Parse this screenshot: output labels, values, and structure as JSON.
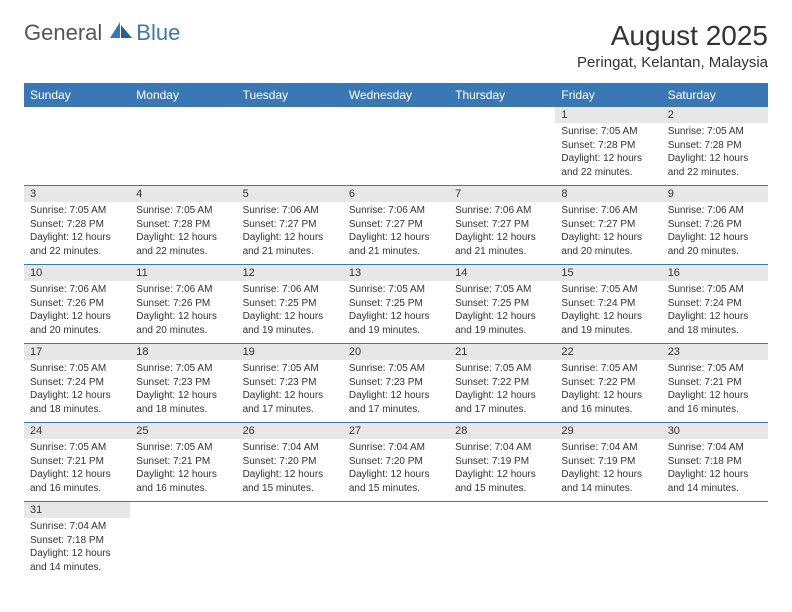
{
  "brand": {
    "general": "General",
    "blue": "Blue"
  },
  "title": "August 2025",
  "location": "Peringat, Kelantan, Malaysia",
  "colors": {
    "header_bg": "#3a78b5",
    "header_text": "#ffffff",
    "daynum_bg": "#e7e7e7",
    "border": "#3a78b5",
    "text": "#333333"
  },
  "weekdays": [
    "Sunday",
    "Monday",
    "Tuesday",
    "Wednesday",
    "Thursday",
    "Friday",
    "Saturday"
  ],
  "weeks": [
    [
      null,
      null,
      null,
      null,
      null,
      {
        "n": "1",
        "sr": "7:05 AM",
        "ss": "7:28 PM",
        "dl": "12 hours and 22 minutes."
      },
      {
        "n": "2",
        "sr": "7:05 AM",
        "ss": "7:28 PM",
        "dl": "12 hours and 22 minutes."
      }
    ],
    [
      {
        "n": "3",
        "sr": "7:05 AM",
        "ss": "7:28 PM",
        "dl": "12 hours and 22 minutes."
      },
      {
        "n": "4",
        "sr": "7:05 AM",
        "ss": "7:28 PM",
        "dl": "12 hours and 22 minutes."
      },
      {
        "n": "5",
        "sr": "7:06 AM",
        "ss": "7:27 PM",
        "dl": "12 hours and 21 minutes."
      },
      {
        "n": "6",
        "sr": "7:06 AM",
        "ss": "7:27 PM",
        "dl": "12 hours and 21 minutes."
      },
      {
        "n": "7",
        "sr": "7:06 AM",
        "ss": "7:27 PM",
        "dl": "12 hours and 21 minutes."
      },
      {
        "n": "8",
        "sr": "7:06 AM",
        "ss": "7:27 PM",
        "dl": "12 hours and 20 minutes."
      },
      {
        "n": "9",
        "sr": "7:06 AM",
        "ss": "7:26 PM",
        "dl": "12 hours and 20 minutes."
      }
    ],
    [
      {
        "n": "10",
        "sr": "7:06 AM",
        "ss": "7:26 PM",
        "dl": "12 hours and 20 minutes."
      },
      {
        "n": "11",
        "sr": "7:06 AM",
        "ss": "7:26 PM",
        "dl": "12 hours and 20 minutes."
      },
      {
        "n": "12",
        "sr": "7:06 AM",
        "ss": "7:25 PM",
        "dl": "12 hours and 19 minutes."
      },
      {
        "n": "13",
        "sr": "7:05 AM",
        "ss": "7:25 PM",
        "dl": "12 hours and 19 minutes."
      },
      {
        "n": "14",
        "sr": "7:05 AM",
        "ss": "7:25 PM",
        "dl": "12 hours and 19 minutes."
      },
      {
        "n": "15",
        "sr": "7:05 AM",
        "ss": "7:24 PM",
        "dl": "12 hours and 19 minutes."
      },
      {
        "n": "16",
        "sr": "7:05 AM",
        "ss": "7:24 PM",
        "dl": "12 hours and 18 minutes."
      }
    ],
    [
      {
        "n": "17",
        "sr": "7:05 AM",
        "ss": "7:24 PM",
        "dl": "12 hours and 18 minutes."
      },
      {
        "n": "18",
        "sr": "7:05 AM",
        "ss": "7:23 PM",
        "dl": "12 hours and 18 minutes."
      },
      {
        "n": "19",
        "sr": "7:05 AM",
        "ss": "7:23 PM",
        "dl": "12 hours and 17 minutes."
      },
      {
        "n": "20",
        "sr": "7:05 AM",
        "ss": "7:23 PM",
        "dl": "12 hours and 17 minutes."
      },
      {
        "n": "21",
        "sr": "7:05 AM",
        "ss": "7:22 PM",
        "dl": "12 hours and 17 minutes."
      },
      {
        "n": "22",
        "sr": "7:05 AM",
        "ss": "7:22 PM",
        "dl": "12 hours and 16 minutes."
      },
      {
        "n": "23",
        "sr": "7:05 AM",
        "ss": "7:21 PM",
        "dl": "12 hours and 16 minutes."
      }
    ],
    [
      {
        "n": "24",
        "sr": "7:05 AM",
        "ss": "7:21 PM",
        "dl": "12 hours and 16 minutes."
      },
      {
        "n": "25",
        "sr": "7:05 AM",
        "ss": "7:21 PM",
        "dl": "12 hours and 16 minutes."
      },
      {
        "n": "26",
        "sr": "7:04 AM",
        "ss": "7:20 PM",
        "dl": "12 hours and 15 minutes."
      },
      {
        "n": "27",
        "sr": "7:04 AM",
        "ss": "7:20 PM",
        "dl": "12 hours and 15 minutes."
      },
      {
        "n": "28",
        "sr": "7:04 AM",
        "ss": "7:19 PM",
        "dl": "12 hours and 15 minutes."
      },
      {
        "n": "29",
        "sr": "7:04 AM",
        "ss": "7:19 PM",
        "dl": "12 hours and 14 minutes."
      },
      {
        "n": "30",
        "sr": "7:04 AM",
        "ss": "7:18 PM",
        "dl": "12 hours and 14 minutes."
      }
    ],
    [
      {
        "n": "31",
        "sr": "7:04 AM",
        "ss": "7:18 PM",
        "dl": "12 hours and 14 minutes."
      },
      null,
      null,
      null,
      null,
      null,
      null
    ]
  ],
  "labels": {
    "sunrise": "Sunrise:",
    "sunset": "Sunset:",
    "daylight": "Daylight:"
  }
}
